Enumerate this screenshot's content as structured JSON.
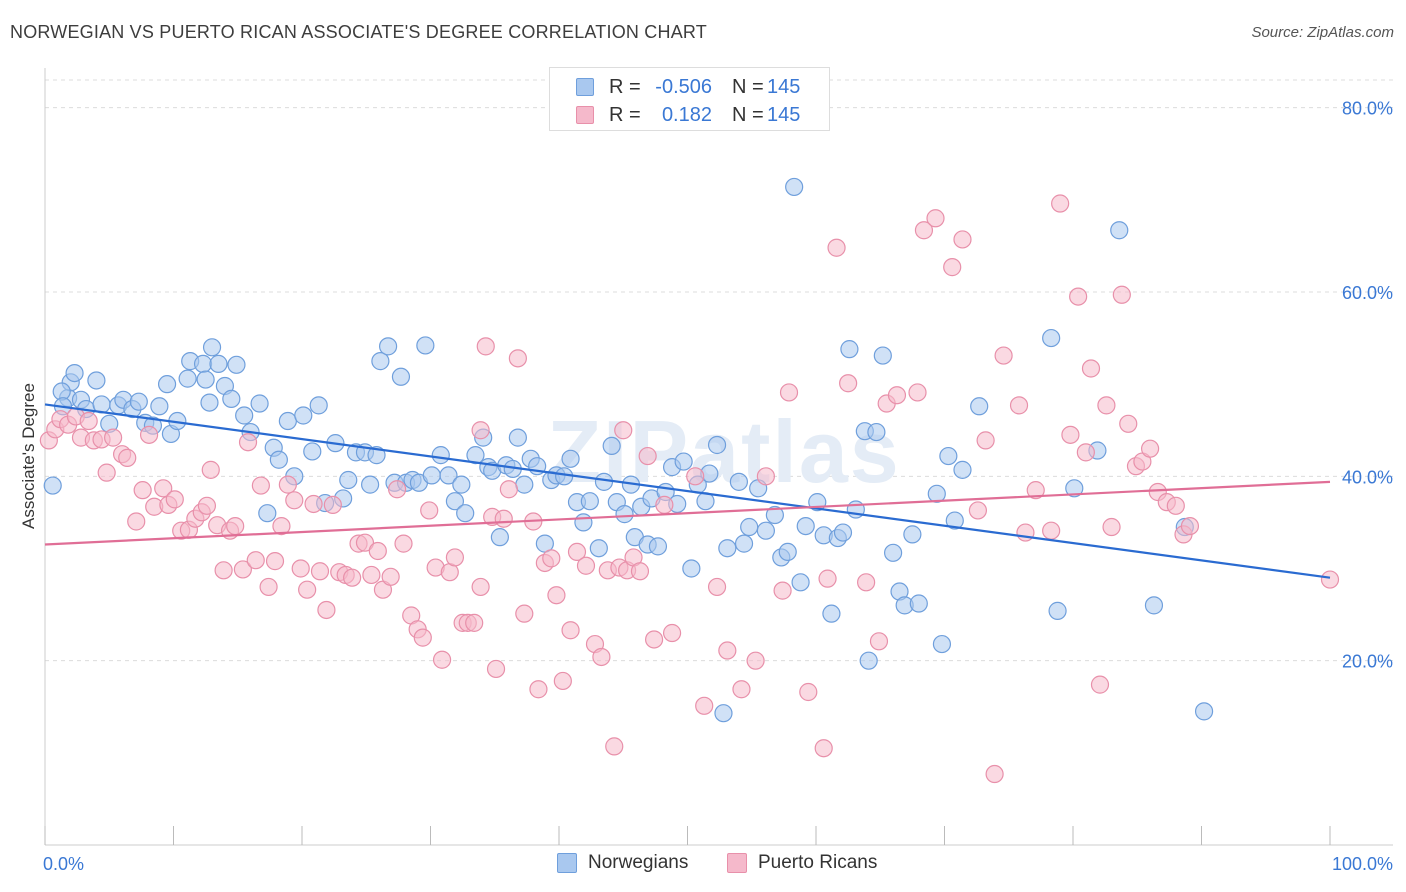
{
  "title": "NORWEGIAN VS PUERTO RICAN ASSOCIATE'S DEGREE CORRELATION CHART",
  "source": "Source: ZipAtlas.com",
  "watermark": "ZIPatlas",
  "legend": {
    "rows": [
      {
        "r_label": "R =",
        "r_value": "-0.506",
        "n_label": "N =",
        "n_value": "145"
      },
      {
        "r_label": "R =",
        "r_value": "0.182",
        "n_label": "N =",
        "n_value": "145"
      }
    ]
  },
  "bottom_legend": {
    "items": [
      {
        "label": "Norwegians"
      },
      {
        "label": "Puerto Ricans"
      }
    ]
  },
  "colors": {
    "blue_fill": "#a9c8ef",
    "blue_stroke": "#6f9fdc",
    "blue_line": "#2a6bd1",
    "pink_fill": "#f5b9cb",
    "pink_stroke": "#e890aa",
    "pink_line": "#e06e96",
    "axis_label": "#3a78d4",
    "grid": "#dcdcdc"
  },
  "chart_data": {
    "type": "scatter",
    "title": "NORWEGIAN VS PUERTO RICAN ASSOCIATE'S DEGREE CORRELATION CHART",
    "xlabel": "",
    "ylabel": "Associate's Degree",
    "xlim": [
      0,
      100
    ],
    "ylim": [
      0,
      83
    ],
    "x_tick_labels": [
      "0.0%",
      "100.0%"
    ],
    "y_ticks": [
      20,
      40,
      60,
      80
    ],
    "y_tick_labels": [
      "20.0%",
      "40.0%",
      "60.0%",
      "80.0%"
    ],
    "series": [
      {
        "name": "Norwegians",
        "r": -0.506,
        "n": 145,
        "trend": {
          "x": [
            0,
            100
          ],
          "y": [
            47.8,
            29.0
          ]
        },
        "points": [
          [
            1.8,
            48.5
          ],
          [
            0.6,
            39.0
          ],
          [
            2.0,
            50.2
          ],
          [
            2.3,
            51.2
          ],
          [
            1.3,
            49.2
          ],
          [
            1.4,
            47.6
          ],
          [
            2.8,
            48.3
          ],
          [
            3.2,
            47.3
          ],
          [
            4.0,
            50.4
          ],
          [
            4.4,
            47.8
          ],
          [
            5.0,
            45.7
          ],
          [
            5.7,
            47.7
          ],
          [
            6.1,
            48.3
          ],
          [
            6.8,
            47.3
          ],
          [
            7.3,
            48.1
          ],
          [
            7.8,
            45.8
          ],
          [
            8.4,
            45.5
          ],
          [
            8.9,
            47.6
          ],
          [
            9.5,
            50.0
          ],
          [
            9.8,
            44.6
          ],
          [
            10.3,
            46.0
          ],
          [
            11.1,
            50.6
          ],
          [
            11.3,
            52.5
          ],
          [
            12.3,
            52.2
          ],
          [
            12.5,
            50.5
          ],
          [
            12.8,
            48.0
          ],
          [
            13.0,
            54.0
          ],
          [
            13.5,
            52.2
          ],
          [
            14.0,
            49.8
          ],
          [
            14.5,
            48.4
          ],
          [
            14.9,
            52.1
          ],
          [
            15.5,
            46.6
          ],
          [
            16.0,
            44.8
          ],
          [
            16.7,
            47.9
          ],
          [
            17.3,
            36.0
          ],
          [
            17.8,
            43.1
          ],
          [
            18.2,
            41.8
          ],
          [
            18.9,
            46.0
          ],
          [
            19.4,
            40.0
          ],
          [
            20.1,
            46.6
          ],
          [
            20.8,
            42.7
          ],
          [
            21.3,
            47.7
          ],
          [
            21.8,
            37.1
          ],
          [
            22.6,
            43.6
          ],
          [
            23.2,
            37.6
          ],
          [
            23.6,
            39.6
          ],
          [
            24.2,
            42.6
          ],
          [
            24.9,
            42.6
          ],
          [
            25.3,
            39.1
          ],
          [
            25.8,
            42.3
          ],
          [
            26.1,
            52.5
          ],
          [
            26.7,
            54.1
          ],
          [
            27.2,
            39.3
          ],
          [
            27.7,
            50.8
          ],
          [
            28.1,
            39.3
          ],
          [
            28.6,
            39.6
          ],
          [
            29.1,
            39.3
          ],
          [
            29.6,
            54.2
          ],
          [
            30.1,
            40.1
          ],
          [
            30.8,
            42.3
          ],
          [
            31.4,
            40.1
          ],
          [
            31.9,
            37.3
          ],
          [
            32.4,
            39.1
          ],
          [
            32.7,
            36.0
          ],
          [
            33.5,
            42.3
          ],
          [
            34.1,
            44.2
          ],
          [
            34.5,
            41.0
          ],
          [
            34.8,
            40.6
          ],
          [
            35.4,
            33.4
          ],
          [
            35.9,
            41.2
          ],
          [
            36.4,
            40.8
          ],
          [
            36.8,
            44.2
          ],
          [
            37.3,
            39.1
          ],
          [
            37.8,
            41.9
          ],
          [
            38.3,
            41.1
          ],
          [
            38.9,
            32.7
          ],
          [
            39.4,
            39.6
          ],
          [
            39.8,
            40.1
          ],
          [
            40.4,
            40.0
          ],
          [
            40.9,
            41.9
          ],
          [
            41.4,
            37.2
          ],
          [
            41.9,
            35.0
          ],
          [
            42.4,
            37.3
          ],
          [
            43.1,
            32.2
          ],
          [
            43.5,
            39.4
          ],
          [
            44.1,
            43.3
          ],
          [
            44.5,
            37.2
          ],
          [
            45.1,
            35.9
          ],
          [
            45.6,
            39.1
          ],
          [
            45.9,
            33.4
          ],
          [
            46.4,
            36.7
          ],
          [
            46.9,
            32.6
          ],
          [
            47.2,
            37.6
          ],
          [
            47.7,
            32.4
          ],
          [
            48.3,
            38.3
          ],
          [
            48.8,
            41.0
          ],
          [
            49.2,
            37.0
          ],
          [
            49.7,
            41.6
          ],
          [
            50.3,
            30.0
          ],
          [
            50.8,
            39.1
          ],
          [
            51.4,
            37.3
          ],
          [
            51.7,
            40.3
          ],
          [
            52.3,
            43.4
          ],
          [
            53.1,
            32.2
          ],
          [
            54.0,
            39.4
          ],
          [
            54.4,
            32.7
          ],
          [
            54.8,
            34.5
          ],
          [
            55.5,
            38.7
          ],
          [
            56.1,
            34.1
          ],
          [
            56.8,
            35.8
          ],
          [
            57.3,
            31.2
          ],
          [
            57.8,
            31.8
          ],
          [
            58.3,
            71.4
          ],
          [
            58.8,
            28.5
          ],
          [
            59.2,
            34.6
          ],
          [
            60.1,
            37.2
          ],
          [
            60.6,
            33.6
          ],
          [
            61.2,
            25.1
          ],
          [
            61.7,
            33.3
          ],
          [
            62.1,
            33.9
          ],
          [
            62.6,
            53.8
          ],
          [
            63.1,
            36.4
          ],
          [
            64.1,
            20.0
          ],
          [
            63.8,
            44.9
          ],
          [
            64.7,
            44.8
          ],
          [
            65.2,
            53.1
          ],
          [
            66.0,
            31.7
          ],
          [
            66.5,
            27.5
          ],
          [
            66.9,
            26.0
          ],
          [
            67.5,
            33.7
          ],
          [
            68.0,
            26.2
          ],
          [
            69.4,
            38.1
          ],
          [
            69.8,
            21.8
          ],
          [
            70.3,
            42.2
          ],
          [
            70.8,
            35.2
          ],
          [
            71.4,
            40.7
          ],
          [
            72.7,
            47.6
          ],
          [
            78.3,
            55.0
          ],
          [
            78.8,
            25.4
          ],
          [
            80.1,
            38.7
          ],
          [
            81.9,
            42.8
          ],
          [
            83.6,
            66.7
          ],
          [
            86.3,
            26.0
          ],
          [
            88.7,
            34.5
          ],
          [
            90.2,
            14.5
          ],
          [
            52.8,
            14.3
          ]
        ]
      },
      {
        "name": "Puerto Ricans",
        "r": 0.182,
        "n": 145,
        "trend": {
          "x": [
            0,
            100
          ],
          "y": [
            32.6,
            39.4
          ]
        },
        "points": [
          [
            0.3,
            43.9
          ],
          [
            0.8,
            45.1
          ],
          [
            1.2,
            46.2
          ],
          [
            1.8,
            45.6
          ],
          [
            2.4,
            46.5
          ],
          [
            2.8,
            44.2
          ],
          [
            3.4,
            46.0
          ],
          [
            3.8,
            43.9
          ],
          [
            4.4,
            44.0
          ],
          [
            4.8,
            40.4
          ],
          [
            5.3,
            44.2
          ],
          [
            6.0,
            42.4
          ],
          [
            6.4,
            42.0
          ],
          [
            7.1,
            35.1
          ],
          [
            7.6,
            38.5
          ],
          [
            8.1,
            44.5
          ],
          [
            8.5,
            36.7
          ],
          [
            9.2,
            38.7
          ],
          [
            9.6,
            36.9
          ],
          [
            10.1,
            37.5
          ],
          [
            10.6,
            34.1
          ],
          [
            11.2,
            34.2
          ],
          [
            11.7,
            35.4
          ],
          [
            12.2,
            36.1
          ],
          [
            12.6,
            36.8
          ],
          [
            12.9,
            40.7
          ],
          [
            13.4,
            34.7
          ],
          [
            13.9,
            29.8
          ],
          [
            14.4,
            34.1
          ],
          [
            14.8,
            34.6
          ],
          [
            15.4,
            29.9
          ],
          [
            15.8,
            43.7
          ],
          [
            16.4,
            30.9
          ],
          [
            16.8,
            39.0
          ],
          [
            17.4,
            28.0
          ],
          [
            17.9,
            30.8
          ],
          [
            18.4,
            34.6
          ],
          [
            18.9,
            39.1
          ],
          [
            19.4,
            37.4
          ],
          [
            19.9,
            30.0
          ],
          [
            20.4,
            27.7
          ],
          [
            20.9,
            37.0
          ],
          [
            21.4,
            29.7
          ],
          [
            21.9,
            25.5
          ],
          [
            22.4,
            36.9
          ],
          [
            22.9,
            29.6
          ],
          [
            23.4,
            29.3
          ],
          [
            23.9,
            29.0
          ],
          [
            24.4,
            32.7
          ],
          [
            24.9,
            32.8
          ],
          [
            25.4,
            29.3
          ],
          [
            25.9,
            31.9
          ],
          [
            26.3,
            27.7
          ],
          [
            26.9,
            29.1
          ],
          [
            27.4,
            38.6
          ],
          [
            27.9,
            32.7
          ],
          [
            28.5,
            24.9
          ],
          [
            29.0,
            23.4
          ],
          [
            29.4,
            22.5
          ],
          [
            29.9,
            36.3
          ],
          [
            30.4,
            30.1
          ],
          [
            30.9,
            20.1
          ],
          [
            31.5,
            29.6
          ],
          [
            31.9,
            31.2
          ],
          [
            32.5,
            24.1
          ],
          [
            32.9,
            24.1
          ],
          [
            33.4,
            24.1
          ],
          [
            33.9,
            28.0
          ],
          [
            34.3,
            54.1
          ],
          [
            34.8,
            35.6
          ],
          [
            35.1,
            19.1
          ],
          [
            35.7,
            35.4
          ],
          [
            36.1,
            38.6
          ],
          [
            36.8,
            52.8
          ],
          [
            37.3,
            25.1
          ],
          [
            38.0,
            35.1
          ],
          [
            38.4,
            16.9
          ],
          [
            38.9,
            30.6
          ],
          [
            39.4,
            31.1
          ],
          [
            39.8,
            27.1
          ],
          [
            40.3,
            17.8
          ],
          [
            40.9,
            23.3
          ],
          [
            41.4,
            31.8
          ],
          [
            42.1,
            30.3
          ],
          [
            42.8,
            21.8
          ],
          [
            43.3,
            20.4
          ],
          [
            43.8,
            29.8
          ],
          [
            44.3,
            10.7
          ],
          [
            44.7,
            30.1
          ],
          [
            45.3,
            29.8
          ],
          [
            45.8,
            31.2
          ],
          [
            46.3,
            29.7
          ],
          [
            46.9,
            42.2
          ],
          [
            47.4,
            22.3
          ],
          [
            48.2,
            36.9
          ],
          [
            48.8,
            23.0
          ],
          [
            50.6,
            40.0
          ],
          [
            51.3,
            15.1
          ],
          [
            52.3,
            28.0
          ],
          [
            53.1,
            21.1
          ],
          [
            54.2,
            16.9
          ],
          [
            55.3,
            20.0
          ],
          [
            56.1,
            40.0
          ],
          [
            57.4,
            27.6
          ],
          [
            57.9,
            49.1
          ],
          [
            59.4,
            16.6
          ],
          [
            60.6,
            10.5
          ],
          [
            60.9,
            28.9
          ],
          [
            61.6,
            64.8
          ],
          [
            62.5,
            50.1
          ],
          [
            63.9,
            28.5
          ],
          [
            64.9,
            22.1
          ],
          [
            65.5,
            47.9
          ],
          [
            66.3,
            48.8
          ],
          [
            67.9,
            49.1
          ],
          [
            68.4,
            66.7
          ],
          [
            69.3,
            68.0
          ],
          [
            70.6,
            62.7
          ],
          [
            71.4,
            65.7
          ],
          [
            72.6,
            36.3
          ],
          [
            73.2,
            43.9
          ],
          [
            73.9,
            7.7
          ],
          [
            74.6,
            53.1
          ],
          [
            75.8,
            47.7
          ],
          [
            76.3,
            33.9
          ],
          [
            77.1,
            38.5
          ],
          [
            78.3,
            34.1
          ],
          [
            79.0,
            69.6
          ],
          [
            79.8,
            44.5
          ],
          [
            80.4,
            59.5
          ],
          [
            81.0,
            42.6
          ],
          [
            81.4,
            51.7
          ],
          [
            82.1,
            17.4
          ],
          [
            82.6,
            47.7
          ],
          [
            83.0,
            34.5
          ],
          [
            83.8,
            59.7
          ],
          [
            84.3,
            45.7
          ],
          [
            84.9,
            41.1
          ],
          [
            85.4,
            41.6
          ],
          [
            86.0,
            43.0
          ],
          [
            86.6,
            38.3
          ],
          [
            87.3,
            37.2
          ],
          [
            88.0,
            36.8
          ],
          [
            88.6,
            33.7
          ],
          [
            89.1,
            34.6
          ],
          [
            100.0,
            28.8
          ],
          [
            33.9,
            45.0
          ],
          [
            45.0,
            45.0
          ]
        ]
      }
    ]
  }
}
